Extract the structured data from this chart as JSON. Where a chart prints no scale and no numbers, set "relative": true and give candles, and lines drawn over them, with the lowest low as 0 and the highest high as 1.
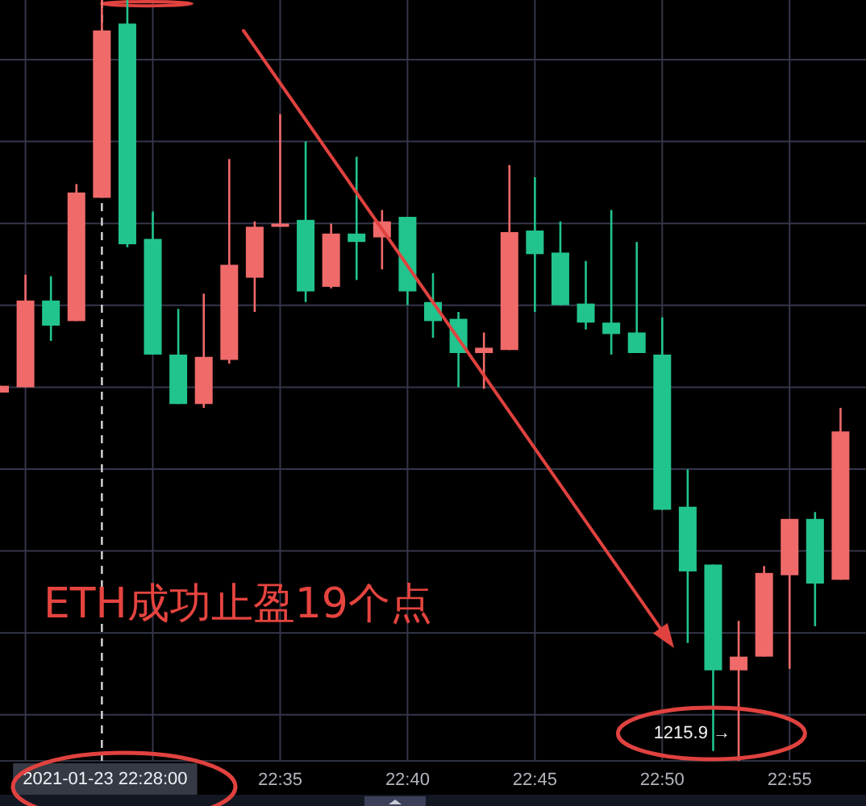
{
  "chart_data": {
    "type": "candlestick",
    "relative": true,
    "x": [
      "2021-01-23T22:24",
      "2021-01-23T22:25",
      "2021-01-23T22:26",
      "2021-01-23T22:27",
      "2021-01-23T22:28",
      "2021-01-23T22:29",
      "2021-01-23T22:30",
      "2021-01-23T22:31",
      "2021-01-23T22:32",
      "2021-01-23T22:33",
      "2021-01-23T22:34",
      "2021-01-23T22:35",
      "2021-01-23T22:36",
      "2021-01-23T22:37",
      "2021-01-23T22:38",
      "2021-01-23T22:39",
      "2021-01-23T22:40",
      "2021-01-23T22:41",
      "2021-01-23T22:42",
      "2021-01-23T22:43",
      "2021-01-23T22:44",
      "2021-01-23T22:45",
      "2021-01-23T22:46",
      "2021-01-23T22:47",
      "2021-01-23T22:48",
      "2021-01-23T22:49",
      "2021-01-23T22:50",
      "2021-01-23T22:51",
      "2021-01-23T22:52",
      "2021-01-23T22:53",
      "2021-01-23T22:54",
      "2021-01-23T22:55",
      "2021-01-23T22:56",
      "2021-01-23T22:57"
    ],
    "ohlc": [
      [
        0.484,
        0.493,
        0.484,
        0.493
      ],
      [
        0.491,
        0.639,
        0.491,
        0.605
      ],
      [
        0.605,
        0.637,
        0.552,
        0.572
      ],
      [
        0.578,
        0.758,
        0.578,
        0.747
      ],
      [
        0.74,
        1,
        0.74,
        0.96
      ],
      [
        0.969,
        1,
        0.675,
        0.679
      ],
      [
        0.686,
        0.722,
        0.534,
        0.534
      ],
      [
        0.534,
        0.594,
        0.469,
        0.469
      ],
      [
        0.469,
        0.614,
        0.464,
        0.531
      ],
      [
        0.527,
        0.791,
        0.522,
        0.652
      ],
      [
        0.635,
        0.709,
        0.59,
        0.702
      ],
      [
        0.702,
        0.85,
        0.702,
        0.706
      ],
      [
        0.711,
        0.814,
        0.603,
        0.617
      ],
      [
        0.623,
        0.706,
        0.621,
        0.693
      ],
      [
        0.693,
        0.794,
        0.632,
        0.682
      ],
      [
        0.688,
        0.724,
        0.646,
        0.709
      ],
      [
        0.715,
        0.715,
        0.599,
        0.617
      ],
      [
        0.603,
        0.641,
        0.556,
        0.578
      ],
      [
        0.581,
        0.59,
        0.491,
        0.536
      ],
      [
        0.536,
        0.563,
        0.489,
        0.543
      ],
      [
        0.54,
        0.783,
        0.54,
        0.695
      ],
      [
        0.697,
        0.767,
        0.59,
        0.666
      ],
      [
        0.668,
        0.709,
        0.599,
        0.599
      ],
      [
        0.601,
        0.657,
        0.567,
        0.576
      ],
      [
        0.576,
        0.724,
        0.534,
        0.561
      ],
      [
        0.563,
        0.682,
        0.536,
        0.536
      ],
      [
        0.534,
        0.583,
        0.33,
        0.33
      ],
      [
        0.334,
        0.383,
        0.155,
        0.249
      ],
      [
        0.258,
        0.258,
        0.013,
        0.119
      ],
      [
        0.119,
        0.184,
        0,
        0.137
      ],
      [
        0.137,
        0.256,
        0.137,
        0.247
      ],
      [
        0.244,
        0.318,
        0.121,
        0.318
      ],
      [
        0.318,
        0.327,
        0.177,
        0.233
      ],
      [
        0.238,
        0.464,
        0.238,
        0.433
      ]
    ],
    "colors": [
      "#f06a6a",
      "#f06a6a",
      "#22c48e",
      "#f06a6a",
      "#f06a6a",
      "#22c48e",
      "#22c48e",
      "#22c48e",
      "#f06a6a",
      "#f06a6a",
      "#f06a6a",
      "#f06a6a",
      "#22c48e",
      "#f06a6a",
      "#22c48e",
      "#f06a6a",
      "#22c48e",
      "#22c48e",
      "#22c48e",
      "#f06a6a",
      "#f06a6a",
      "#22c48e",
      "#22c48e",
      "#22c48e",
      "#22c48e",
      "#22c48e",
      "#22c48e",
      "#22c48e",
      "#22c48e",
      "#f06a6a",
      "#f06a6a",
      "#f06a6a",
      "#22c48e",
      "#f06a6a"
    ],
    "xlim": [
      "2021-01-23T22:24",
      "2021-01-23T22:58"
    ],
    "xticks": [
      {
        "value": "2021-01-23T22:25",
        "label": null
      },
      {
        "value": "2021-01-23T22:30",
        "label": null
      },
      {
        "value": "2021-01-23T22:35",
        "label": "22:35"
      },
      {
        "value": "2021-01-23T22:40",
        "label": "22:40"
      },
      {
        "value": "2021-01-23T22:45",
        "label": "22:45"
      },
      {
        "value": "2021-01-23T22:50",
        "label": "22:50"
      },
      {
        "value": "2021-01-23T22:55",
        "label": "22:55"
      }
    ],
    "grid": true,
    "ref_lines": [
      {
        "axis": "x",
        "value": "2021-01-23T22:28",
        "label": "2021-01-23 22:28:00",
        "line_style": "dashed",
        "color": "#d9d9d9"
      }
    ],
    "annotations": [
      "ETH成功止盈19个点",
      {
        "text": "1215.9 →",
        "x": "2021-01-23T22:53",
        "y": 0
      }
    ]
  }
}
